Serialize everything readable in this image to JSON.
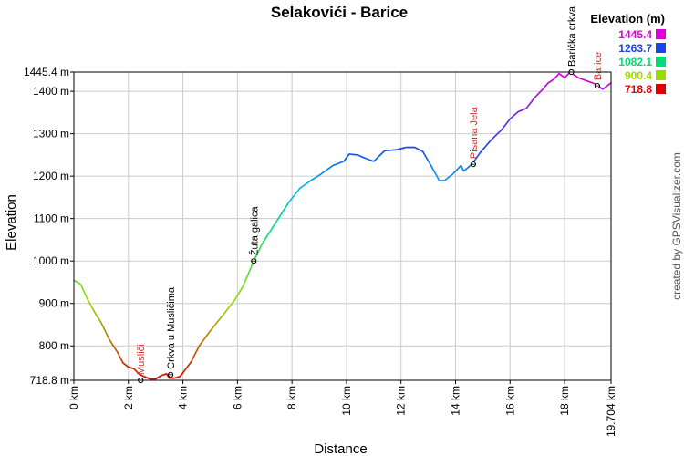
{
  "chart_data": {
    "type": "line",
    "title": "Selakovići - Barice",
    "xlabel": "Distance",
    "ylabel": "Elevation",
    "x_unit": "km",
    "y_unit": "m",
    "xlim": [
      0,
      19.704
    ],
    "ylim": [
      718.8,
      1445.4
    ],
    "x_ticks": [
      {
        "v": 0,
        "label": "0 km"
      },
      {
        "v": 2,
        "label": "2 km"
      },
      {
        "v": 4,
        "label": "4 km"
      },
      {
        "v": 6,
        "label": "6 km"
      },
      {
        "v": 8,
        "label": "8 km"
      },
      {
        "v": 10,
        "label": "10 km"
      },
      {
        "v": 12,
        "label": "12 km"
      },
      {
        "v": 14,
        "label": "14 km"
      },
      {
        "v": 16,
        "label": "16 km"
      },
      {
        "v": 18,
        "label": "18 km"
      },
      {
        "v": 19.704,
        "label": "19.704 km"
      }
    ],
    "y_ticks": [
      {
        "v": 718.8,
        "label": "718.8 m"
      },
      {
        "v": 800,
        "label": "800 m"
      },
      {
        "v": 900,
        "label": "900 m"
      },
      {
        "v": 1000,
        "label": "1000 m"
      },
      {
        "v": 1100,
        "label": "1100 m"
      },
      {
        "v": 1200,
        "label": "1200 m"
      },
      {
        "v": 1300,
        "label": "1300 m"
      },
      {
        "v": 1400,
        "label": "1400 m"
      },
      {
        "v": 1445.4,
        "label": "1445.4 m"
      }
    ],
    "grid": true,
    "legend": {
      "title": "Elevation (m)",
      "placement": "top-right",
      "entries": [
        {
          "label": "1445.4",
          "color": "#dd00dd"
        },
        {
          "label": "1263.7",
          "color": "#1a44ee"
        },
        {
          "label": "1082.1",
          "color": "#00dd77"
        },
        {
          "label": "900.4",
          "color": "#99dd00"
        },
        {
          "label": "718.8",
          "color": "#dd0000"
        }
      ]
    },
    "color_stops": [
      {
        "v": 718.8,
        "color": "#dd0000"
      },
      {
        "v": 900.4,
        "color": "#99dd00"
      },
      {
        "v": 1082.1,
        "color": "#00dd77"
      },
      {
        "v": 1172.9,
        "color": "#00bbee"
      },
      {
        "v": 1263.7,
        "color": "#1a44ee"
      },
      {
        "v": 1445.4,
        "color": "#dd00dd"
      }
    ],
    "series": [
      {
        "points": [
          [
            0,
            955
          ],
          [
            0.25,
            945
          ],
          [
            0.5,
            910
          ],
          [
            0.8,
            875
          ],
          [
            1.0,
            855
          ],
          [
            1.3,
            815
          ],
          [
            1.6,
            785
          ],
          [
            1.8,
            760
          ],
          [
            2.0,
            750
          ],
          [
            2.2,
            746
          ],
          [
            2.4,
            733
          ],
          [
            2.6,
            727
          ],
          [
            2.8,
            722
          ],
          [
            3.0,
            722
          ],
          [
            3.2,
            730
          ],
          [
            3.4,
            734
          ],
          [
            3.5,
            724
          ],
          [
            3.7,
            724
          ],
          [
            3.9,
            728
          ],
          [
            4.1,
            745
          ],
          [
            4.3,
            762
          ],
          [
            4.6,
            800
          ],
          [
            5.0,
            835
          ],
          [
            5.5,
            875
          ],
          [
            5.9,
            908
          ],
          [
            6.2,
            940
          ],
          [
            6.6,
            1000
          ],
          [
            6.9,
            1040
          ],
          [
            7.2,
            1070
          ],
          [
            7.5,
            1100
          ],
          [
            7.9,
            1140
          ],
          [
            8.3,
            1172
          ],
          [
            8.7,
            1190
          ],
          [
            9.0,
            1202
          ],
          [
            9.5,
            1225
          ],
          [
            9.9,
            1235
          ],
          [
            10.1,
            1252
          ],
          [
            10.4,
            1250
          ],
          [
            10.7,
            1242
          ],
          [
            11.0,
            1235
          ],
          [
            11.4,
            1260
          ],
          [
            11.8,
            1262
          ],
          [
            12.2,
            1268
          ],
          [
            12.5,
            1268
          ],
          [
            12.8,
            1258
          ],
          [
            13.1,
            1225
          ],
          [
            13.4,
            1190
          ],
          [
            13.6,
            1190
          ],
          [
            13.9,
            1205
          ],
          [
            14.2,
            1225
          ],
          [
            14.3,
            1212
          ],
          [
            14.6,
            1228
          ],
          [
            14.9,
            1255
          ],
          [
            15.3,
            1285
          ],
          [
            15.7,
            1310
          ],
          [
            16.0,
            1335
          ],
          [
            16.3,
            1352
          ],
          [
            16.6,
            1360
          ],
          [
            16.9,
            1385
          ],
          [
            17.2,
            1405
          ],
          [
            17.4,
            1420
          ],
          [
            17.6,
            1428
          ],
          [
            17.8,
            1442
          ],
          [
            18.0,
            1432
          ],
          [
            18.2,
            1445
          ],
          [
            18.5,
            1432
          ],
          [
            18.8,
            1425
          ],
          [
            19.1,
            1418
          ],
          [
            19.4,
            1405
          ],
          [
            19.704,
            1420
          ]
        ]
      }
    ],
    "waypoints": [
      {
        "name": "Musliči",
        "x": 2.45,
        "y": 718.8,
        "color": "#cc3333"
      },
      {
        "name": "Crkva u Musličima",
        "x": 3.55,
        "y": 732,
        "color": "#000000"
      },
      {
        "name": "Žuta galica",
        "x": 6.6,
        "y": 1000,
        "color": "#000000"
      },
      {
        "name": "Pisana Jela",
        "x": 14.65,
        "y": 1228,
        "color": "#cc3333"
      },
      {
        "name": "Barička crkva",
        "x": 18.25,
        "y": 1445.4,
        "color": "#000000"
      },
      {
        "name": "Barice",
        "x": 19.2,
        "y": 1413,
        "color": "#cc3333"
      }
    ],
    "credit": "created by GPSVisualizer.com"
  }
}
